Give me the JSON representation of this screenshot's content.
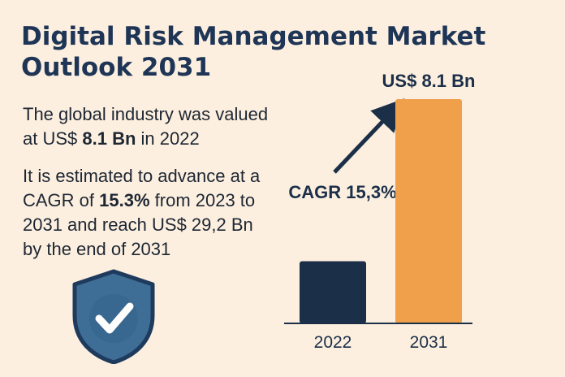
{
  "title_line1": "Digital Risk Management Market",
  "title_line2": "Outlook 2031",
  "paragraph1": {
    "line1": "The global industry was valued",
    "line2_prefix": "at US$ ",
    "line2_bold": "8.1 Bn",
    "line2_suffix": " in 2022"
  },
  "paragraph2": {
    "line1": "It is estimated to advance at a",
    "line2_prefix": "CAGR of ",
    "line2_bold": "15.3%",
    "line2_suffix": " from 2023 to",
    "line3": "2031 and reach US$ 29,2 Bn",
    "line4": "by the end of 2031"
  },
  "icons": {
    "shield": "shield-check-icon"
  },
  "colors": {
    "background": "#fcefdf",
    "navy": "#1c2f48",
    "orange": "#f0a04a",
    "shield": "#3e6d96",
    "shield_border": "#1e3a5c"
  },
  "chart_data": {
    "type": "bar",
    "categories": [
      "2022",
      "2031"
    ],
    "values": [
      8.1,
      29.2
    ],
    "bar_colors": [
      "#1c2f48",
      "#f0a04a"
    ],
    "annotations": {
      "top_label": "US$ 8.1 Bn",
      "cagr_label": "CAGR 15,3%"
    },
    "ylim": [
      0,
      29.2
    ],
    "grid": false,
    "legend": "none"
  }
}
